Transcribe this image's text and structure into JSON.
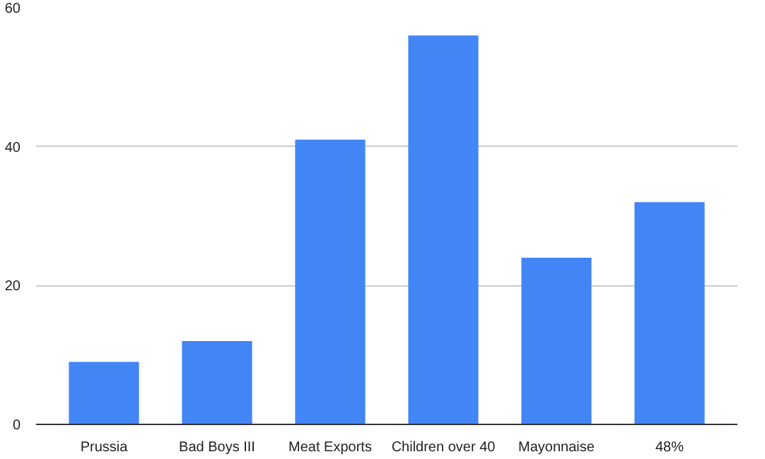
{
  "chart_data": {
    "type": "bar",
    "categories": [
      "Prussia",
      "Bad Boys III",
      "Meat Exports",
      "Children over 40",
      "Mayonnaise",
      "48%"
    ],
    "values": [
      9,
      12,
      41,
      56,
      24,
      32
    ],
    "color": "#4285f4",
    "ylim": [
      0,
      60
    ],
    "yticks": [
      0,
      20,
      40,
      60
    ],
    "grid": "y"
  }
}
